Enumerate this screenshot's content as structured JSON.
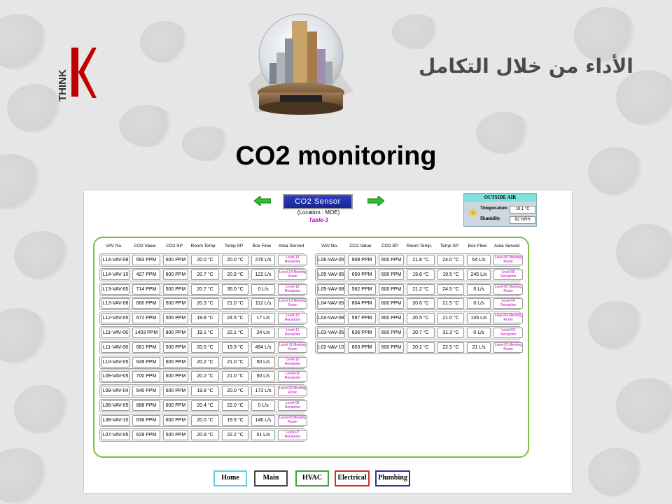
{
  "header": {
    "logo_text": "THINK",
    "tagline": "الأداء من خلال التكامل",
    "slide_title": "CO2 monitoring"
  },
  "panel": {
    "sensor_title": "CO2 Sensor",
    "location": "(Location : MOE)",
    "table_label": "Table-3",
    "outside_air": {
      "title": "OUTSIDE AIR",
      "temperature_label": "Temperature",
      "temperature_value": "19.1 °C",
      "humidity_label": "Humidity",
      "humidity_value": "82 %RH"
    },
    "columns": [
      "VAV No.",
      "CO2 Value",
      "CO2 SP",
      "Room Temp.",
      "Temp SP",
      "Box Flow",
      "Area Served"
    ],
    "left_rows": [
      [
        "L14-VAV-08",
        "683 PPM",
        "600 PPM",
        "20.0 °C",
        "20.0 °C",
        "276 L/s",
        "Level-14 Reception"
      ],
      [
        "L14-VAV-10",
        "427 PPM",
        "600 PPM",
        "20.7 °C",
        "20.9 °C",
        "122 L/s",
        "Level-14 Meeting Room"
      ],
      [
        "L13-VAV-05",
        "714 PPM",
        "500 PPM",
        "20.7 °C",
        "35.0 °C",
        "0 L/s",
        "Level-13 Reception"
      ],
      [
        "L13-VAV-08",
        "660 PPM",
        "500 PPM",
        "20.3 °C",
        "21.0 °C",
        "112 L/s",
        "Level-13 Meeting Room"
      ],
      [
        "L12-VAV-05",
        "672 PPM",
        "500 PPM",
        "19.8 °C",
        "24.5 °C",
        "17 L/s",
        "Level-12 Reception"
      ],
      [
        "L11-VAV-06",
        "1403 PPM",
        "800 PPM",
        "19.1 °C",
        "22.1 °C",
        "24 L/s",
        "Level-11 Reception"
      ],
      [
        "L11-VAV-08",
        "681 PPM",
        "500 PPM",
        "20.5 °C",
        "19.9 °C",
        "494 L/s",
        "Level-11 Meeting Room"
      ],
      [
        "L10-VAV-05",
        "649 PPM",
        "600 PPM",
        "20.2 °C",
        "21.0 °C",
        "50 L/s",
        "Level-10 Reception"
      ],
      [
        "L09-VAV-05",
        "700 PPM",
        "600 PPM",
        "20.2 °C",
        "21.0 °C",
        "50 L/s",
        "Level-09 Reception"
      ],
      [
        "L09-VAV-04",
        "640 PPM",
        "600 PPM",
        "19.8 °C",
        "20.0 °C",
        "173 L/s",
        "Level-09 Meeting Room"
      ],
      [
        "L08-VAV-05",
        "688 PPM",
        "600 PPM",
        "20.4 °C",
        "22.0 °C",
        "0 L/s",
        "Level-08 Reception"
      ],
      [
        "L08-VAV-10",
        "636 PPM",
        "600 PPM",
        "20.0 °C",
        "19.9 °C",
        "146 L/s",
        "Level-08 Meeting Room"
      ],
      [
        "L07-VAV-05",
        "628 PPM",
        "500 PPM",
        "20.9 °C",
        "22.2 °C",
        "51 L/s",
        "Level-07 Reception"
      ]
    ],
    "right_rows": [
      [
        "L06-VAV-05",
        "908 PPM",
        "600 PPM",
        "21.8 °C",
        "24.0 °C",
        "64 L/s",
        "Level-06 Meeting Room"
      ],
      [
        "L05-VAV-05",
        "650 PPM",
        "600 PPM",
        "19.6 °C",
        "19.5 °C",
        "245 L/s",
        "Level-05 Reception"
      ],
      [
        "L05-VAV-08",
        "562 PPM",
        "600 PPM",
        "21.2 °C",
        "24.5 °C",
        "0 L/s",
        "Level-05 Meeting Room"
      ],
      [
        "L04-VAV-05",
        "604 PPM",
        "600 PPM",
        "20.6 °C",
        "21.5 °C",
        "0 L/s",
        "Level-04 Reception"
      ],
      [
        "L04-VAV-08",
        "597 PPM",
        "600 PPM",
        "20.5 °C",
        "21.0 °C",
        "145 L/s",
        "Level-04 Meeting Room"
      ],
      [
        "L03-VAV-05",
        "636 PPM",
        "600 PPM",
        "20.7 °C",
        "31.3 °C",
        "0 L/s",
        "Level-03 Reception"
      ],
      [
        "L02-VAV-10",
        "603 PPM",
        "600 PPM",
        "20.2 °C",
        "22.5 °C",
        "21 L/s",
        "Level-02 Meeting Room"
      ]
    ],
    "nav": [
      {
        "label": "Home",
        "color": "#5fd0e0"
      },
      {
        "label": "Main",
        "color": "#444444"
      },
      {
        "label": "HVAC",
        "color": "#3aa43a"
      },
      {
        "label": "Electrical",
        "color": "#d03030"
      },
      {
        "label": "Plumbing",
        "color": "#3030a0"
      }
    ]
  },
  "colors": {
    "frame_green": "#7cc040",
    "area_text": "#c000c0",
    "arrow_green": "#2ec02e"
  }
}
